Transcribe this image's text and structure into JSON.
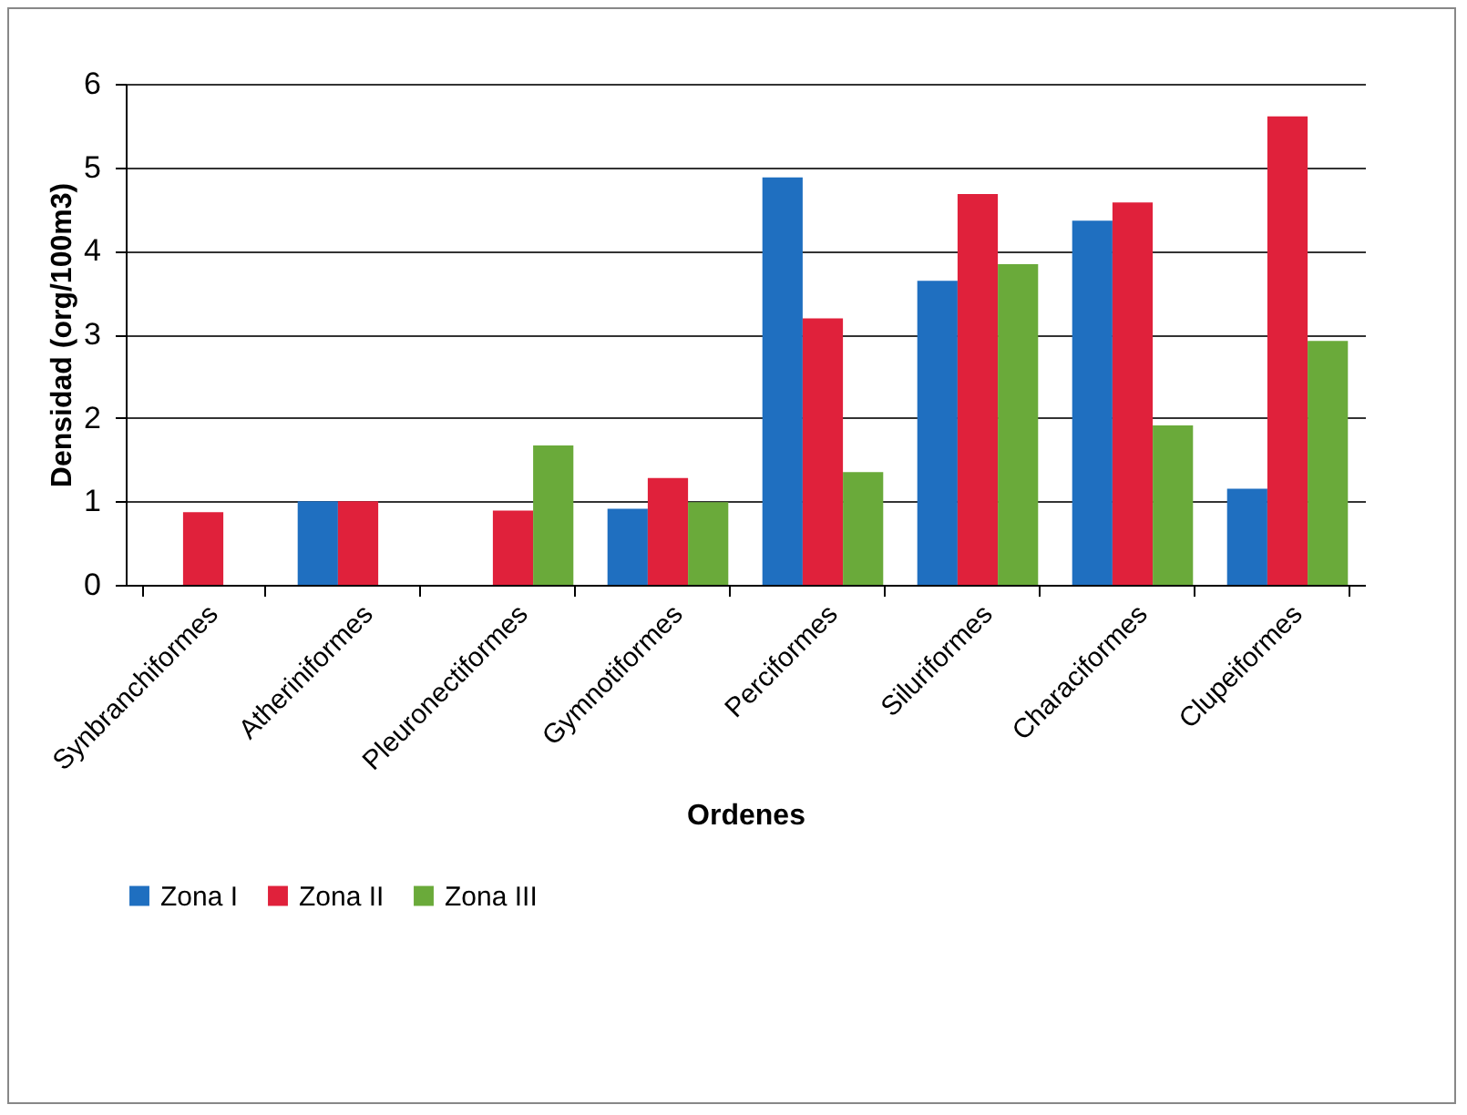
{
  "chart_data": {
    "type": "bar",
    "xlabel": "Ordenes",
    "ylabel": "Densidad (org/100m3)",
    "categories": [
      "Synbranchiformes",
      "Atheriniformes",
      "Pleuronectiformes",
      "Gymnotiformes",
      "Perciformes",
      "Siluriformes",
      "Characiformes",
      "Clupeiformes"
    ],
    "series": [
      {
        "name": "Zona I",
        "color": "#1f6fc0",
        "values": [
          null,
          1.0,
          null,
          0.91,
          4.88,
          3.64,
          4.36,
          1.15
        ]
      },
      {
        "name": "Zona II",
        "color": "#e0213b",
        "values": [
          0.87,
          1.0,
          0.89,
          1.28,
          3.19,
          4.68,
          4.58,
          5.61
        ]
      },
      {
        "name": "Zona III",
        "color": "#6aaa3a",
        "values": [
          null,
          null,
          1.67,
          0.99,
          1.35,
          3.84,
          1.91,
          2.92
        ]
      }
    ],
    "ylim": [
      0,
      6
    ],
    "yticks": [
      0,
      1,
      2,
      3,
      4,
      5,
      6
    ],
    "grid": "y",
    "legend": "bottom"
  }
}
